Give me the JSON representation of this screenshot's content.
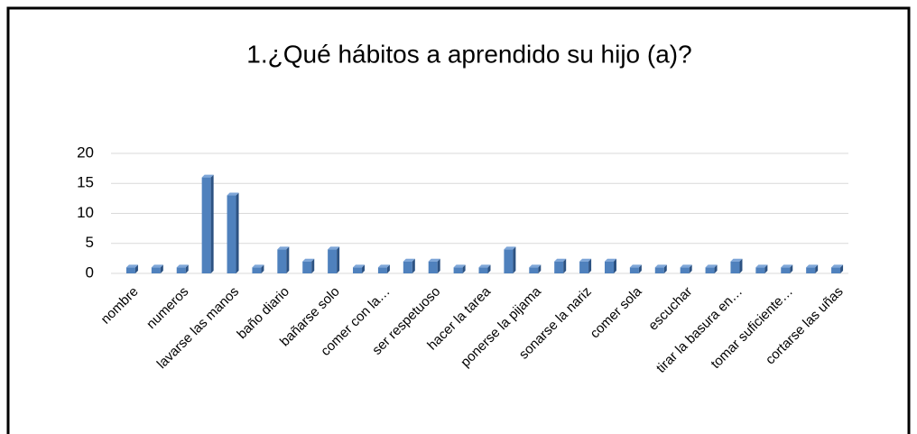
{
  "chart_data": {
    "type": "bar",
    "title": "1.¿Qué hábitos a aprendido su hijo (a)?",
    "categories": [
      "nombre",
      null,
      "numeros",
      null,
      "lavarse las manos",
      null,
      "baño diario",
      null,
      "bañarse solo",
      null,
      "comer con la…",
      null,
      "ser respetuoso",
      null,
      "hacer la tarea",
      null,
      "ponerse la pijama",
      null,
      "sonarse la nariz",
      null,
      "comer sola",
      null,
      "escuchar",
      null,
      "tirar la basura en…",
      null,
      "tomar suficiente…",
      null,
      "cortarse las uñas"
    ],
    "values": [
      1,
      1,
      1,
      16,
      13,
      1,
      4,
      2,
      4,
      1,
      1,
      2,
      2,
      1,
      1,
      4,
      1,
      2,
      2,
      2,
      1,
      1,
      1,
      1,
      2,
      1,
      1,
      1,
      1
    ],
    "color": "#4f81bd",
    "ylim": [
      0,
      20
    ],
    "yticks": [
      0,
      5,
      10,
      15,
      20
    ],
    "grid": true
  }
}
